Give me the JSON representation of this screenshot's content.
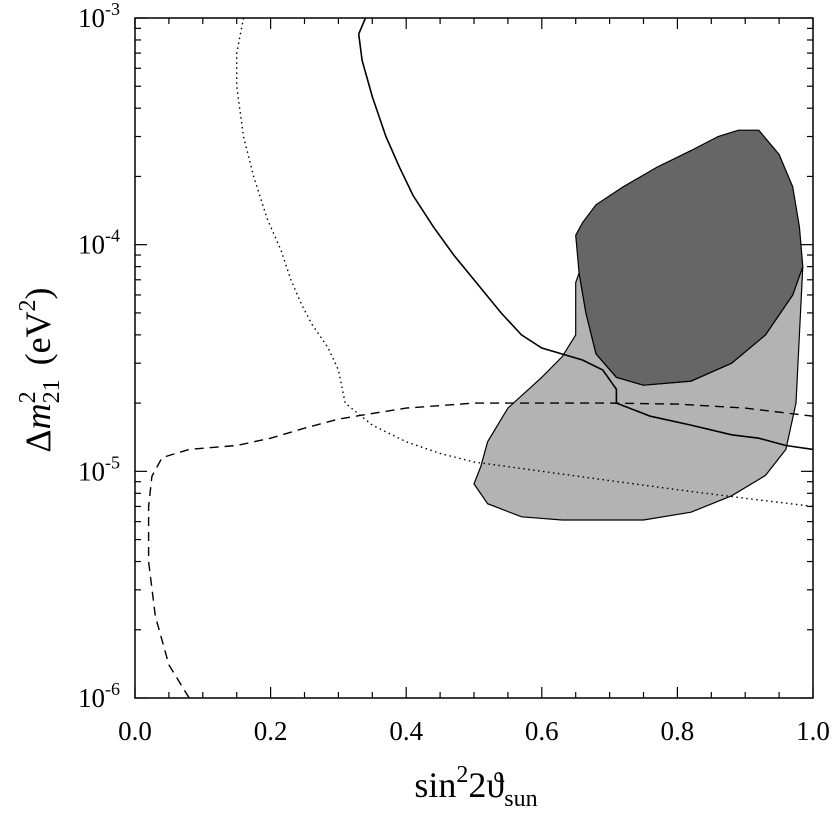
{
  "chart_data": {
    "type": "area",
    "xlabel": {
      "base": "sin",
      "sup": "2",
      "mid": "2ϑ",
      "sub": "sun"
    },
    "ylabel": {
      "prefix": "Δ",
      "var": "m",
      "sup": "2",
      "sub": "21",
      "unit": "(eV",
      "unit_sup": "2",
      "unit_end": ")"
    },
    "x_range": [
      0,
      1
    ],
    "y_range": [
      1e-06,
      0.001
    ],
    "y_scale": "log",
    "grid": false,
    "x_ticks": [
      {
        "value": 0.0,
        "label": "0.0"
      },
      {
        "value": 0.2,
        "label": "0.2"
      },
      {
        "value": 0.4,
        "label": "0.4"
      },
      {
        "value": 0.6,
        "label": "0.6"
      },
      {
        "value": 0.8,
        "label": "0.8"
      },
      {
        "value": 1.0,
        "label": "1.0"
      }
    ],
    "y_ticks": [
      {
        "value": 1e-06,
        "base": "10",
        "exp": "-6"
      },
      {
        "value": 1e-05,
        "base": "10",
        "exp": "-5"
      },
      {
        "value": 0.0001,
        "base": "10",
        "exp": "-4"
      },
      {
        "value": 0.001,
        "base": "10",
        "exp": "-3"
      }
    ],
    "regions": [
      {
        "fill": "#b3b3b3",
        "points": [
          [
            0.51,
            1.05e-05
          ],
          [
            0.5,
            8.8e-06
          ],
          [
            0.52,
            7.2e-06
          ],
          [
            0.57,
            6.3e-06
          ],
          [
            0.63,
            6.1e-06
          ],
          [
            0.75,
            6.1e-06
          ],
          [
            0.82,
            6.6e-06
          ],
          [
            0.88,
            7.8e-06
          ],
          [
            0.93,
            9.6e-06
          ],
          [
            0.96,
            1.25e-05
          ],
          [
            0.975,
            2e-05
          ],
          [
            0.98,
            4e-05
          ],
          [
            0.985,
            8e-05
          ],
          [
            0.97,
            6e-05
          ],
          [
            0.93,
            4e-05
          ],
          [
            0.88,
            3e-05
          ],
          [
            0.82,
            2.5e-05
          ],
          [
            0.75,
            2.4e-05
          ],
          [
            0.71,
            2.6e-05
          ],
          [
            0.68,
            3.3e-05
          ],
          [
            0.665,
            5e-05
          ],
          [
            0.655,
            7.5e-05
          ],
          [
            0.65,
            6.8e-05
          ],
          [
            0.65,
            4e-05
          ],
          [
            0.63,
            3.2e-05
          ],
          [
            0.6,
            2.6e-05
          ],
          [
            0.55,
            1.9e-05
          ],
          [
            0.52,
            1.35e-05
          ]
        ]
      },
      {
        "fill": "#666666",
        "points": [
          [
            0.65,
            0.00011
          ],
          [
            0.66,
            0.000125
          ],
          [
            0.68,
            0.00015
          ],
          [
            0.72,
            0.00018
          ],
          [
            0.77,
            0.00022
          ],
          [
            0.82,
            0.00026
          ],
          [
            0.86,
            0.0003
          ],
          [
            0.89,
            0.00032
          ],
          [
            0.92,
            0.00032
          ],
          [
            0.95,
            0.00025
          ],
          [
            0.97,
            0.00018
          ],
          [
            0.98,
            0.00012
          ],
          [
            0.985,
            8e-05
          ],
          [
            0.97,
            6e-05
          ],
          [
            0.93,
            4e-05
          ],
          [
            0.88,
            3e-05
          ],
          [
            0.82,
            2.5e-05
          ],
          [
            0.75,
            2.4e-05
          ],
          [
            0.71,
            2.6e-05
          ],
          [
            0.68,
            3.3e-05
          ],
          [
            0.665,
            5e-05
          ],
          [
            0.655,
            7.5e-05
          ]
        ]
      }
    ],
    "curves": [
      {
        "style": "solid",
        "points": [
          [
            0.34,
            0.001
          ],
          [
            0.33,
            0.00085
          ],
          [
            0.335,
            0.00065
          ],
          [
            0.35,
            0.00045
          ],
          [
            0.37,
            0.0003
          ],
          [
            0.39,
            0.00022
          ],
          [
            0.41,
            0.000165
          ],
          [
            0.44,
            0.00012
          ],
          [
            0.47,
            9e-05
          ],
          [
            0.5,
            7e-05
          ],
          [
            0.54,
            5e-05
          ],
          [
            0.57,
            4e-05
          ],
          [
            0.6,
            3.5e-05
          ],
          [
            0.66,
            3.1e-05
          ],
          [
            0.69,
            2.8e-05
          ],
          [
            0.71,
            2.3e-05
          ],
          [
            0.71,
            2e-05
          ],
          [
            0.76,
            1.75e-05
          ],
          [
            0.82,
            1.6e-05
          ],
          [
            0.88,
            1.45e-05
          ],
          [
            0.92,
            1.4e-05
          ],
          [
            0.96,
            1.3e-05
          ],
          [
            1.0,
            1.25e-05
          ]
        ]
      },
      {
        "style": "dotted",
        "points": [
          [
            0.16,
            0.001
          ],
          [
            0.15,
            0.0007
          ],
          [
            0.15,
            0.0005
          ],
          [
            0.16,
            0.0003
          ],
          [
            0.175,
            0.0002
          ],
          [
            0.195,
            0.00013
          ],
          [
            0.215,
            9.5e-05
          ],
          [
            0.23,
            7e-05
          ],
          [
            0.245,
            5.5e-05
          ],
          [
            0.26,
            4.5e-05
          ],
          [
            0.285,
            3.5e-05
          ],
          [
            0.3,
            2.8e-05
          ],
          [
            0.31,
            2e-05
          ],
          [
            0.35,
            1.6e-05
          ],
          [
            0.4,
            1.35e-05
          ],
          [
            0.45,
            1.2e-05
          ],
          [
            0.5,
            1.1e-05
          ],
          [
            0.6,
            1e-05
          ],
          [
            0.7,
            9.1e-06
          ],
          [
            0.8,
            8.3e-06
          ],
          [
            0.9,
            7.6e-06
          ],
          [
            1.0,
            7e-06
          ]
        ]
      },
      {
        "style": "dashed",
        "points": [
          [
            0.08,
            1e-06
          ],
          [
            0.05,
            1.4e-06
          ],
          [
            0.03,
            2.3e-06
          ],
          [
            0.02,
            4e-06
          ],
          [
            0.02,
            7e-06
          ],
          [
            0.025,
            9.5e-06
          ],
          [
            0.04,
            1.15e-05
          ],
          [
            0.08,
            1.25e-05
          ],
          [
            0.15,
            1.3e-05
          ],
          [
            0.2,
            1.4e-05
          ],
          [
            0.25,
            1.55e-05
          ],
          [
            0.3,
            1.7e-05
          ],
          [
            0.35,
            1.8e-05
          ],
          [
            0.4,
            1.9e-05
          ],
          [
            0.5,
            2e-05
          ],
          [
            0.6,
            2e-05
          ],
          [
            0.7,
            2e-05
          ],
          [
            0.8,
            1.98e-05
          ],
          [
            0.9,
            1.9e-05
          ],
          [
            1.0,
            1.75e-05
          ]
        ]
      }
    ]
  }
}
